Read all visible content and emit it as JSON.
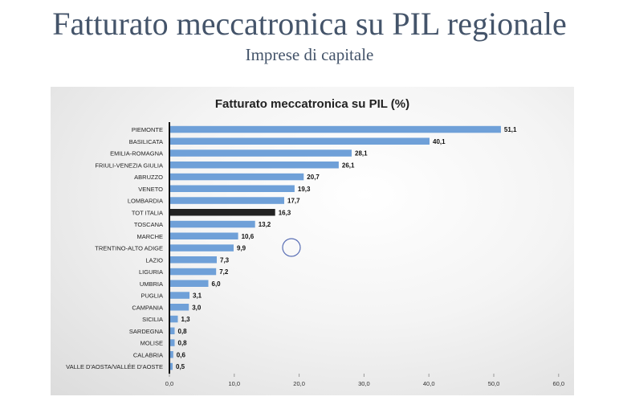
{
  "slide": {
    "title": "Fatturato meccatronica su PIL regionale",
    "subtitle": "Imprese di capitale"
  },
  "colors": {
    "bar": "#6fa0d8",
    "highlight_bar": "#222222",
    "title_text": "#44546a"
  },
  "chart_data": {
    "type": "bar",
    "orientation": "horizontal",
    "title": "Fatturato meccatronica su PIL (%)",
    "categories": [
      "PIEMONTE",
      "BASILICATA",
      "EMILIA-ROMAGNA",
      "FRIULI-VENEZIA GIULIA",
      "ABRUZZO",
      "VENETO",
      "LOMBARDIA",
      "TOT ITALIA",
      "TOSCANA",
      "MARCHE",
      "TRENTINO-ALTO ADIGE",
      "LAZIO",
      "LIGURIA",
      "UMBRIA",
      "PUGLIA",
      "CAMPANIA",
      "SICILIA",
      "SARDEGNA",
      "MOLISE",
      "CALABRIA",
      "VALLE D'AOSTA/VALLÉE D'AOSTE"
    ],
    "values": [
      51.1,
      40.1,
      28.1,
      26.1,
      20.7,
      19.3,
      17.7,
      16.3,
      13.2,
      10.6,
      9.9,
      7.3,
      7.2,
      6.0,
      3.1,
      3.0,
      1.3,
      0.8,
      0.8,
      0.6,
      0.5
    ],
    "value_labels": [
      "51,1",
      "40,1",
      "28,1",
      "26,1",
      "20,7",
      "19,3",
      "17,7",
      "16,3",
      "13,2",
      "10,6",
      "9,9",
      "7,3",
      "7,2",
      "6,0",
      "3,1",
      "3,0",
      "1,3",
      "0,8",
      "0,8",
      "0,6",
      "0,5"
    ],
    "highlight_category": "TOT ITALIA",
    "xlim": [
      0,
      60
    ],
    "x_ticks": [
      0,
      10,
      20,
      30,
      40,
      50,
      60
    ],
    "x_tick_labels": [
      "0,0",
      "10,0",
      "20,0",
      "30,0",
      "40,0",
      "50,0",
      "60,0"
    ],
    "xlabel": "",
    "ylabel": "",
    "grid": false,
    "legend": "none"
  }
}
